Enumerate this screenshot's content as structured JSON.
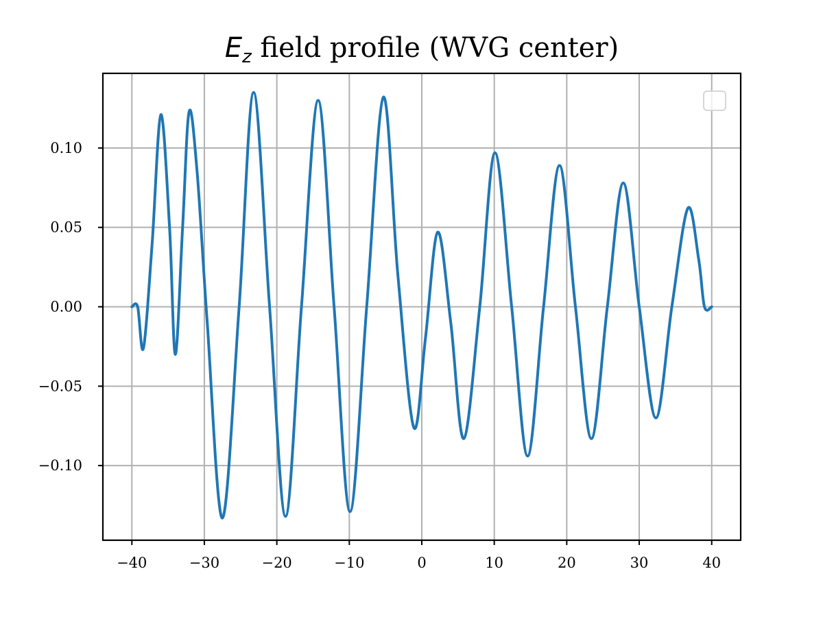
{
  "chart_data": {
    "type": "line",
    "title_symbol": "E",
    "title_subscript": "z",
    "title_rest": " field profile (WVG center)",
    "xlabel": "",
    "ylabel": "",
    "xlim": [
      -44,
      44
    ],
    "ylim": [
      -0.147,
      0.147
    ],
    "x_ticks": [
      -40,
      -30,
      -20,
      -10,
      0,
      10,
      20,
      30,
      40
    ],
    "x_tick_labels": [
      "−40",
      "−30",
      "−20",
      "−10",
      "0",
      "10",
      "20",
      "30",
      "40"
    ],
    "y_ticks": [
      -0.1,
      -0.05,
      0.0,
      0.05,
      0.1
    ],
    "y_tick_labels": [
      "−0.10",
      "−0.05",
      "0.00",
      "0.05",
      "0.10"
    ],
    "grid": true,
    "legend": "top-right (empty)",
    "series": [
      {
        "color": "#1f77b4",
        "x": [
          -40.0,
          -39.2,
          -38.4,
          -37.2,
          -36.0,
          -34.8,
          -34.0,
          -33.0,
          -32.1,
          -31.0,
          -29.6,
          -27.5,
          -25.2,
          -23.2,
          -21.0,
          -18.8,
          -16.6,
          -14.3,
          -12.1,
          -9.9,
          -7.6,
          -5.3,
          -3.3,
          -1.1,
          0.5,
          2.2,
          4.0,
          5.8,
          8.0,
          10.1,
          12.4,
          14.6,
          16.8,
          19.0,
          21.2,
          23.4,
          25.6,
          27.8,
          30.0,
          32.3,
          34.5,
          36.7,
          38.2,
          39.0,
          40.0
        ],
        "y": [
          0.0,
          0.0,
          -0.026,
          0.04,
          0.121,
          0.05,
          -0.03,
          0.05,
          0.123,
          0.085,
          -0.01,
          -0.133,
          0.0,
          0.135,
          0.0,
          -0.132,
          0.0,
          0.13,
          0.0,
          -0.129,
          0.0,
          0.132,
          0.02,
          -0.076,
          -0.02,
          0.047,
          -0.01,
          -0.083,
          0.0,
          0.097,
          0.0,
          -0.094,
          0.0,
          0.089,
          0.0,
          -0.083,
          0.0,
          0.078,
          0.0,
          -0.07,
          0.0,
          0.062,
          0.03,
          0.0,
          0.0
        ]
      }
    ]
  }
}
